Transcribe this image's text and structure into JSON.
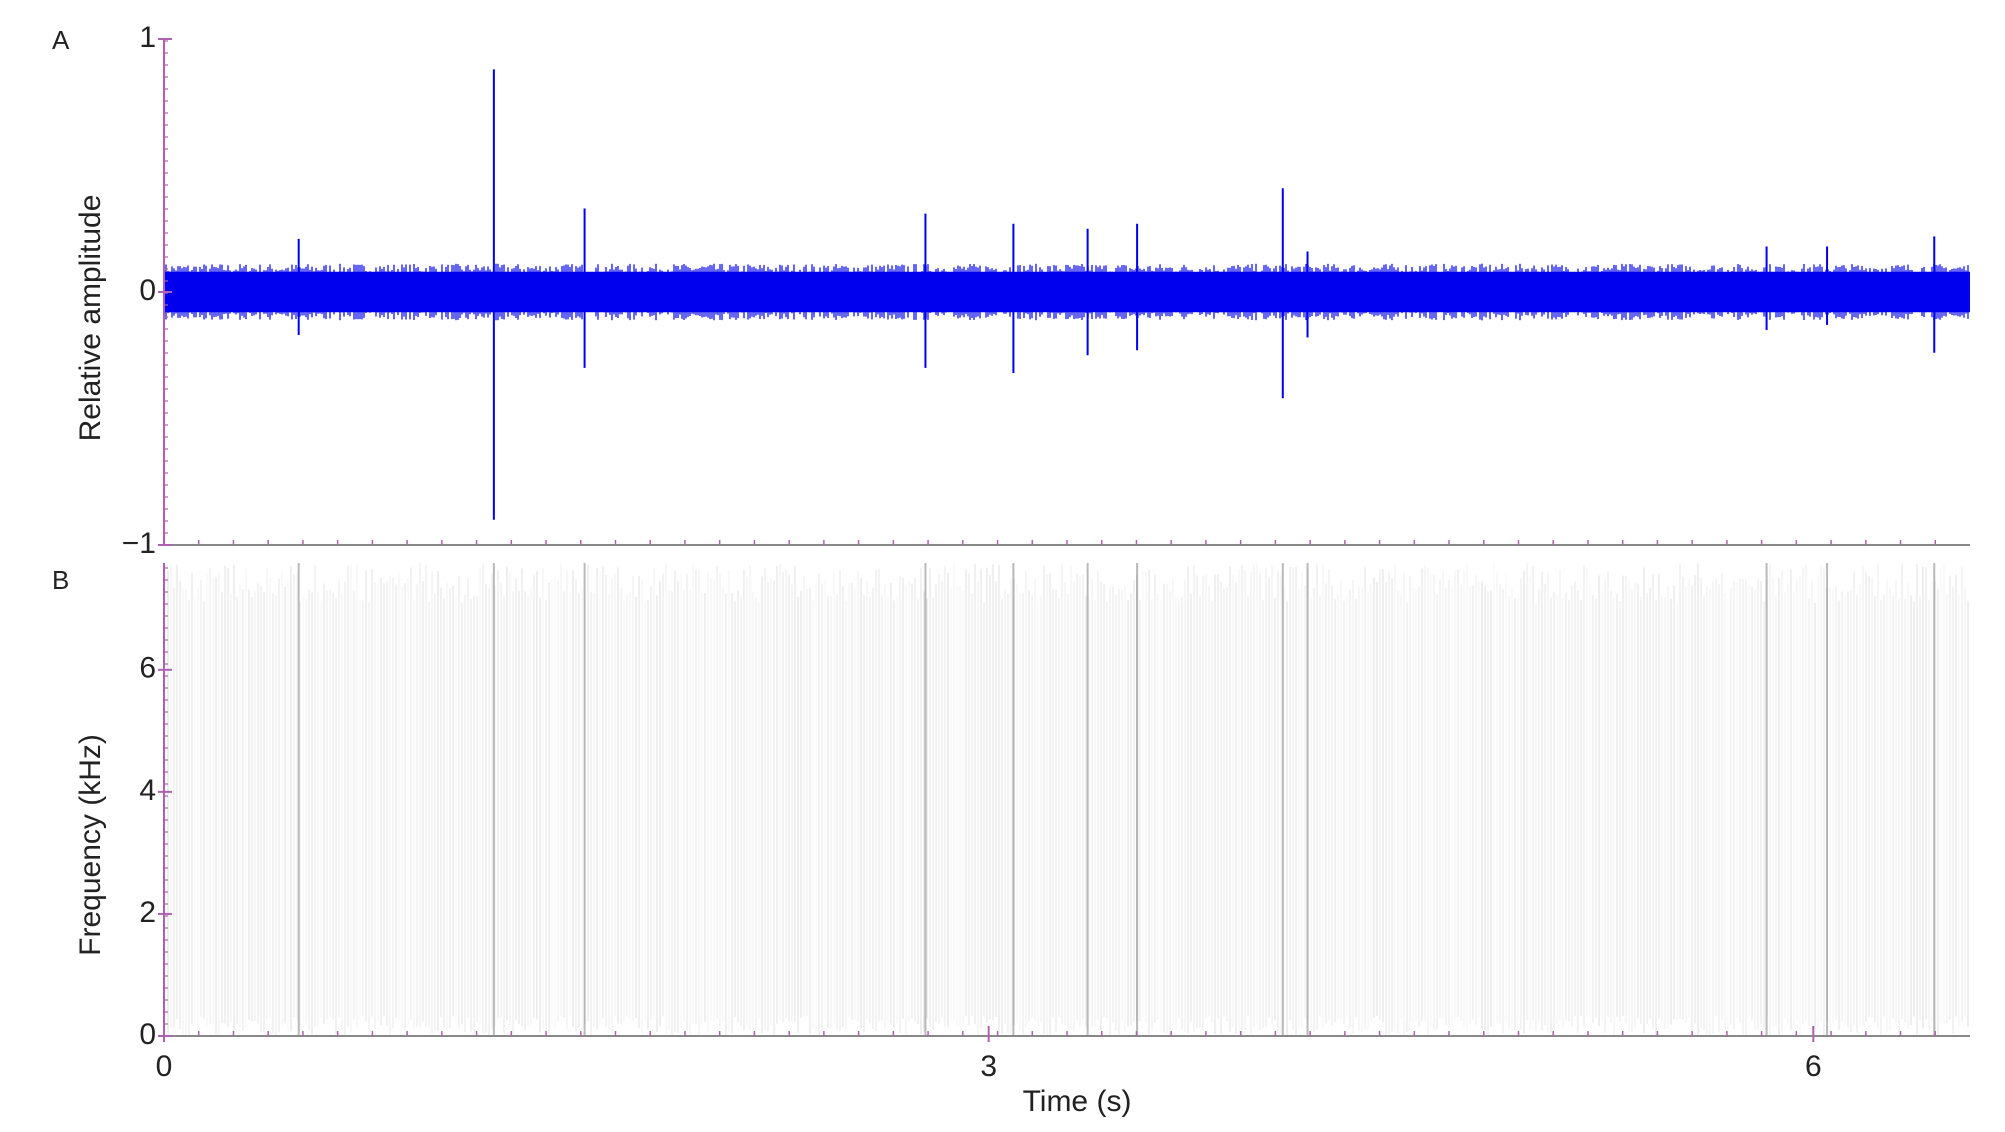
{
  "chart_data": [
    {
      "type": "waveform",
      "panel_label": "A",
      "y_label": "Relative amplitude",
      "color": "#0000ee",
      "xlim": [
        0,
        6.57
      ],
      "ylim": [
        -1,
        1
      ],
      "yticks": [
        {
          "value": -1,
          "label": "−1"
        },
        0,
        1
      ],
      "noise_band": [
        -0.08,
        0.08
      ],
      "x": [
        0.49,
        1.2,
        1.53,
        2.77,
        3.09,
        3.36,
        3.54,
        4.07,
        4.16,
        5.83,
        6.05,
        6.44
      ],
      "peaks": [
        0.21,
        0.88,
        0.33,
        0.31,
        0.27,
        0.25,
        0.27,
        0.41,
        0.16,
        0.18,
        0.18,
        0.22
      ],
      "troughs": [
        -0.17,
        -0.9,
        -0.3,
        -0.3,
        -0.32,
        -0.25,
        -0.23,
        -0.42,
        -0.18,
        -0.15,
        -0.13,
        -0.24
      ]
    },
    {
      "type": "spectrogram",
      "panel_label": "B",
      "y_label": "Frequency (kHz)",
      "x_label": "Time (s)",
      "xlim": [
        0,
        6.57
      ],
      "ylim": [
        0,
        7.75
      ],
      "xticks": [
        0,
        3,
        6
      ],
      "yticks": [
        0,
        2,
        4,
        6
      ]
    }
  ]
}
